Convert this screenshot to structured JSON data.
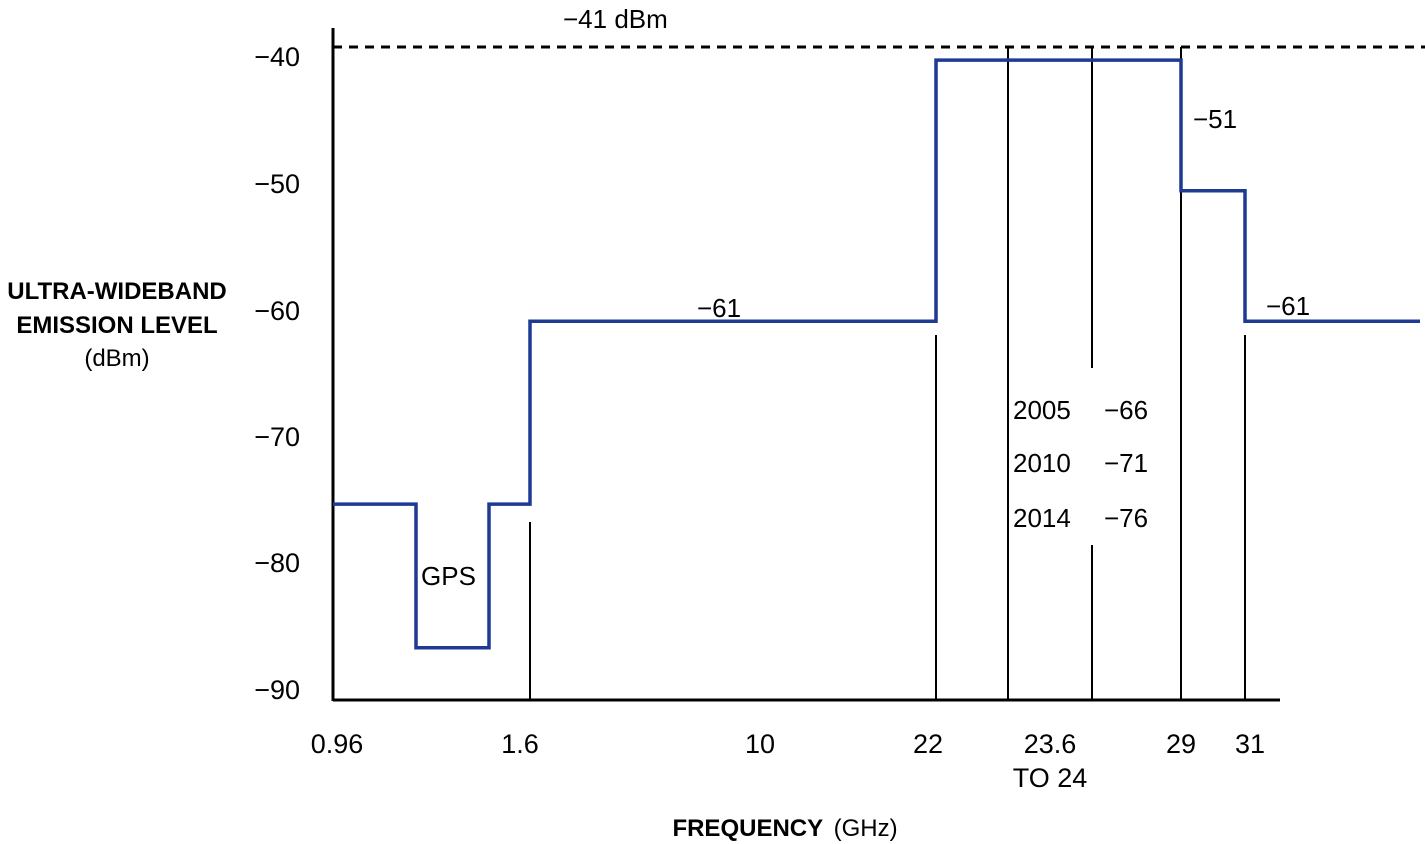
{
  "chart_data": {
    "type": "line",
    "title": "",
    "xlabel": "FREQUENCY",
    "xlabel_unit": "(GHz)",
    "ylabel_lines": [
      "ULTRA-WIDEBAND",
      "EMISSION LEVEL"
    ],
    "ylabel_unit": "(dBm)",
    "ylim": [
      -90,
      -40
    ],
    "y_ticks": [
      "−40",
      "−50",
      "−60",
      "−70",
      "−80",
      "−90"
    ],
    "x_ticks": [
      "0.96",
      "1.6",
      "10",
      "22",
      "23.6",
      "29",
      "31"
    ],
    "x_tick_sub": "TO 24",
    "grid": false,
    "legend": "none",
    "colors": {
      "mask": "#1f3a93",
      "axis": "#000000"
    },
    "reference_line": {
      "label": "−41 dBm",
      "value": -41,
      "style": "dashed"
    },
    "series": [
      {
        "segments": [
          {
            "from": "below 0.96",
            "to": "GPS lower edge",
            "level": -75
          },
          {
            "from": "GPS lower edge",
            "to": "GPS upper edge",
            "level": -86
          },
          {
            "from": "GPS upper edge",
            "to": "1.6",
            "level": -75
          },
          {
            "from": "1.6",
            "to": "22",
            "level": -61
          },
          {
            "from": "22",
            "to": "29",
            "level": -41
          },
          {
            "from": "29",
            "to": "31",
            "level": -51
          },
          {
            "from": "31",
            "to": "above 31",
            "level": -61
          }
        ]
      }
    ],
    "annotations": {
      "gps": "GPS",
      "mid_level": "−61",
      "right_level": "−61",
      "band_29_31": "−51",
      "phase_rows": [
        {
          "year": "2005",
          "level": "−66"
        },
        {
          "year": "2010",
          "level": "−71"
        },
        {
          "year": "2014",
          "level": "−76"
        }
      ]
    }
  }
}
